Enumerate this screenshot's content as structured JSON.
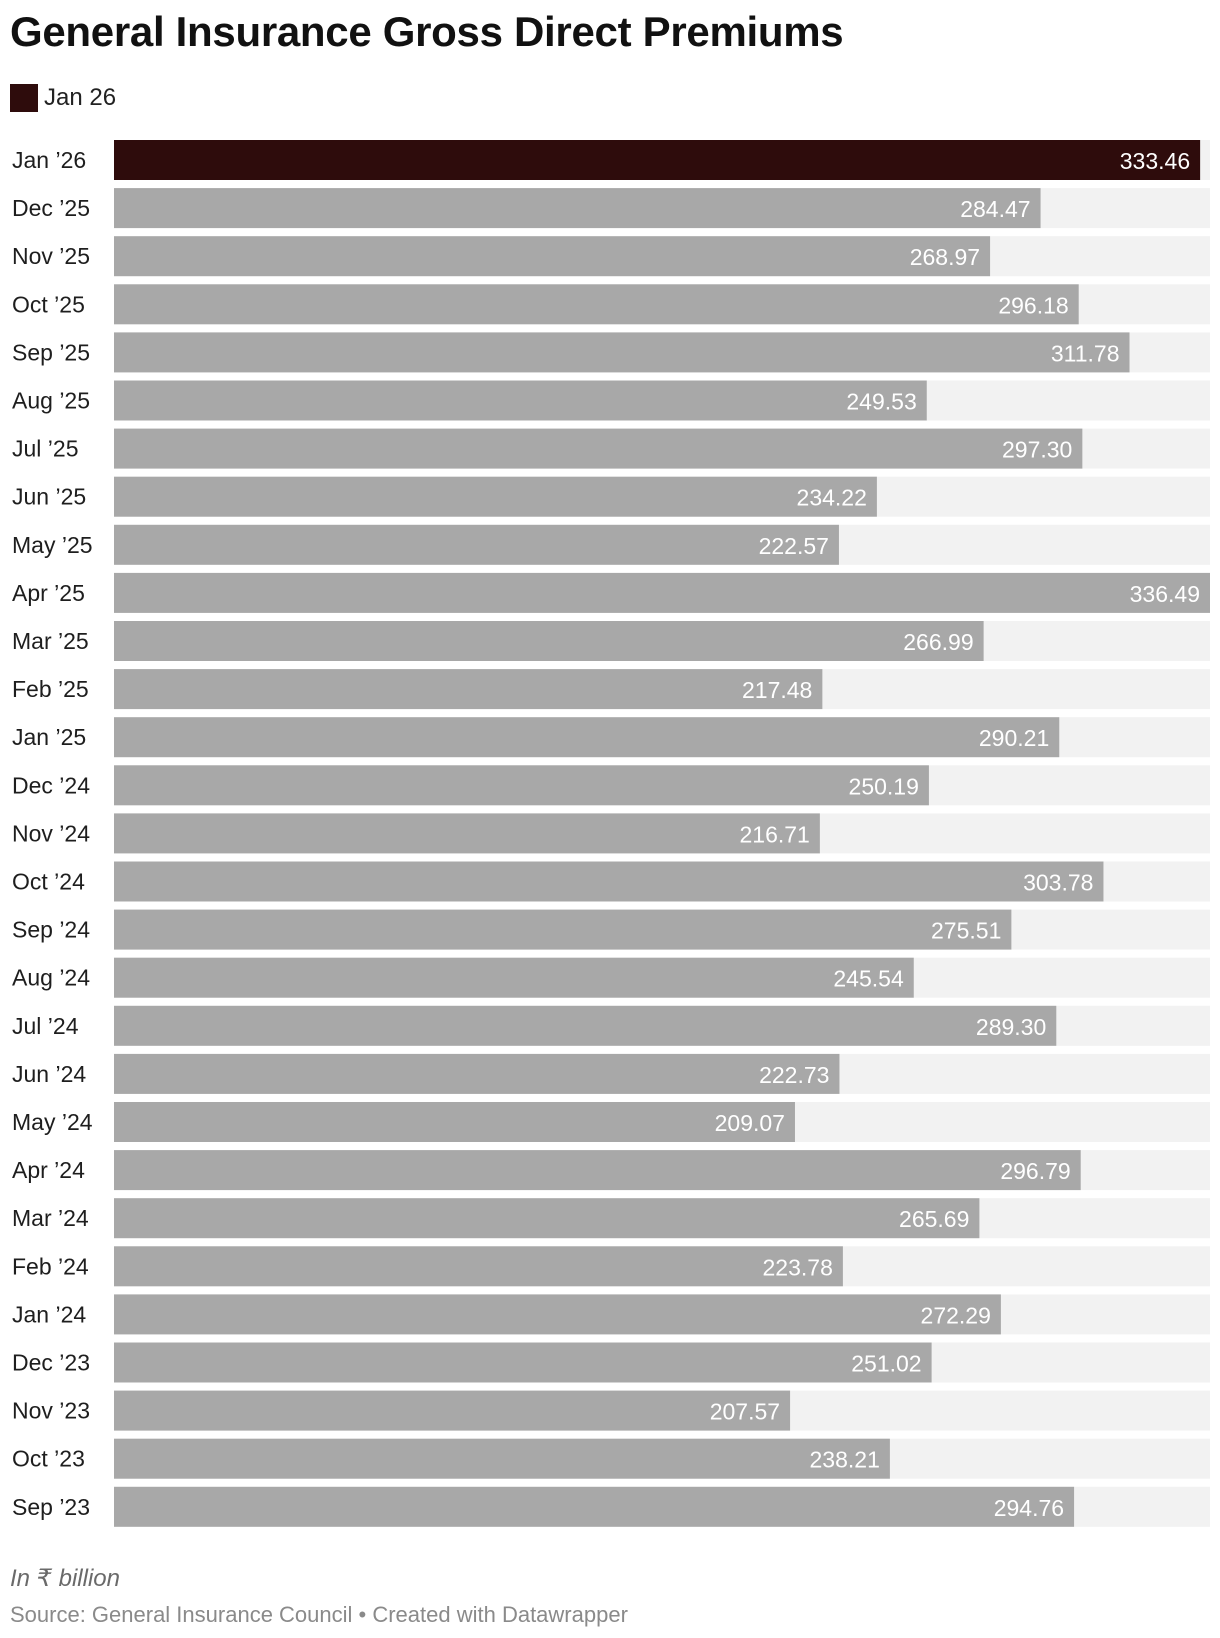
{
  "chart_data": {
    "type": "bar",
    "orientation": "horizontal",
    "title": "General Insurance Gross Direct Premiums",
    "legend": [
      {
        "label": "Jan 26",
        "color": "#2e0c0c"
      }
    ],
    "notes": "In ₹ billion",
    "source": "Source: General Insurance Council • Created with Datawrapper",
    "highlight_color": "#2e0c0c",
    "bar_color": "#a8a8a8",
    "track_color": "#f2f2f2",
    "xlim": [
      0,
      336.49
    ],
    "categories": [
      "Jan ’26",
      "Dec ’25",
      "Nov ’25",
      "Oct ’25",
      "Sep ’25",
      "Aug ’25",
      "Jul ’25",
      "Jun ’25",
      "May ’25",
      "Apr ’25",
      "Mar ’25",
      "Feb ’25",
      "Jan ’25",
      "Dec ’24",
      "Nov ’24",
      "Oct ’24",
      "Sep ’24",
      "Aug ’24",
      "Jul ’24",
      "Jun ’24",
      "May ’24",
      "Apr ’24",
      "Mar ’24",
      "Feb ’24",
      "Jan ’24",
      "Dec ’23",
      "Nov ’23",
      "Oct ’23",
      "Sep ’23"
    ],
    "values": [
      333.46,
      284.47,
      268.97,
      296.18,
      311.78,
      249.53,
      297.3,
      234.22,
      222.57,
      336.49,
      266.99,
      217.48,
      290.21,
      250.19,
      216.71,
      303.78,
      275.51,
      245.54,
      289.3,
      222.73,
      209.07,
      296.79,
      265.69,
      223.78,
      272.29,
      251.02,
      207.57,
      238.21,
      294.76
    ],
    "labels": [
      "333.46",
      "284.47",
      "268.97",
      "296.18",
      "311.78",
      "249.53",
      "297.30",
      "234.22",
      "222.57",
      "336.49",
      "266.99",
      "217.48",
      "290.21",
      "250.19",
      "216.71",
      "303.78",
      "275.51",
      "245.54",
      "289.30",
      "222.73",
      "209.07",
      "296.79",
      "265.69",
      "223.78",
      "272.29",
      "251.02",
      "207.57",
      "238.21",
      "294.76"
    ],
    "highlighted_index": 0
  }
}
